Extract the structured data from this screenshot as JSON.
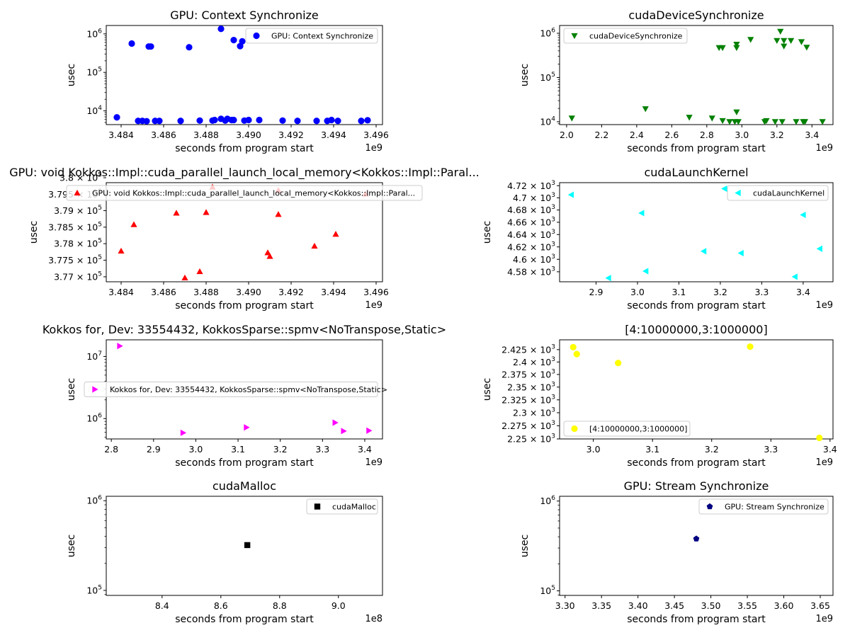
{
  "chart_data": [
    {
      "id": "ctx-sync",
      "type": "scatter",
      "title": "GPU: Context Synchronize",
      "xlabel": "seconds from program start",
      "ylabel": "usec",
      "x_offset_label": "1e9",
      "yscale": "log",
      "xlim": [
        3.4833,
        3.4963
      ],
      "ylim": [
        4400,
        1650000
      ],
      "xticks": [
        3.484,
        3.486,
        3.488,
        3.49,
        3.492,
        3.494,
        3.496
      ],
      "xtick_labels": [
        "3.484",
        "3.486",
        "3.488",
        "3.490",
        "3.492",
        "3.494",
        "3.496"
      ],
      "yticks": [
        10000,
        100000,
        1000000
      ],
      "ytick_labels": [
        "10^4",
        "10^5",
        "10^6"
      ],
      "marker": "circle",
      "color": "#0000ff",
      "grid": false,
      "legend": {
        "label": "GPU: Context Synchronize",
        "position": "upper right"
      },
      "points": [
        [
          3.4838,
          6800
        ],
        [
          3.4845,
          560000
        ],
        [
          3.4848,
          5500
        ],
        [
          3.485,
          5500
        ],
        [
          3.4852,
          5400
        ],
        [
          3.4853,
          470000
        ],
        [
          3.4854,
          470000
        ],
        [
          3.4856,
          5500
        ],
        [
          3.4858,
          5500
        ],
        [
          3.4868,
          5500
        ],
        [
          3.4872,
          450000
        ],
        [
          3.4877,
          5600
        ],
        [
          3.4883,
          5600
        ],
        [
          3.4884,
          5800
        ],
        [
          3.4887,
          1350000
        ],
        [
          3.4887,
          6200
        ],
        [
          3.4889,
          5600
        ],
        [
          3.489,
          6200
        ],
        [
          3.4892,
          5800
        ],
        [
          3.4893,
          5800
        ],
        [
          3.4893,
          690000
        ],
        [
          3.4896,
          480000
        ],
        [
          3.4897,
          640000
        ],
        [
          3.4898,
          5600
        ],
        [
          3.49,
          5800
        ],
        [
          3.4905,
          5800
        ],
        [
          3.4916,
          5600
        ],
        [
          3.4923,
          5500
        ],
        [
          3.4932,
          5500
        ],
        [
          3.4937,
          5500
        ],
        [
          3.4939,
          5800
        ],
        [
          3.4942,
          5500
        ],
        [
          3.4953,
          5500
        ],
        [
          3.4956,
          5700
        ]
      ]
    },
    {
      "id": "dev-sync",
      "type": "scatter",
      "title": "cudaDeviceSynchronize",
      "xlabel": "seconds from program start",
      "ylabel": "usec",
      "x_offset_label": "1e9",
      "yscale": "log",
      "xlim": [
        1.96,
        3.52
      ],
      "ylim": [
        8600,
        1500000
      ],
      "xticks": [
        2.0,
        2.2,
        2.4,
        2.6,
        2.8,
        3.0,
        3.2,
        3.4
      ],
      "xtick_labels": [
        "2.0",
        "2.2",
        "2.4",
        "2.6",
        "2.8",
        "3.0",
        "3.2",
        "3.4"
      ],
      "yticks": [
        10000,
        100000,
        1000000
      ],
      "ytick_labels": [
        "10^4",
        "10^5",
        "10^6"
      ],
      "marker": "triangle-down",
      "color": "#008000",
      "grid": false,
      "legend": {
        "label": "cudaDeviceSynchronize",
        "position": "upper left"
      },
      "points": [
        [
          2.03,
          12000
        ],
        [
          2.45,
          19500
        ],
        [
          2.7,
          12500
        ],
        [
          2.83,
          12000
        ],
        [
          2.87,
          470000
        ],
        [
          2.89,
          470000
        ],
        [
          2.89,
          10500
        ],
        [
          2.93,
          10000
        ],
        [
          2.96,
          10000
        ],
        [
          2.97,
          470000
        ],
        [
          2.97,
          560000
        ],
        [
          2.97,
          16500
        ],
        [
          2.98,
          10000
        ],
        [
          3.05,
          720000
        ],
        [
          3.13,
          10000
        ],
        [
          3.14,
          10500
        ],
        [
          3.19,
          10000
        ],
        [
          3.2,
          680000
        ],
        [
          3.22,
          1100000
        ],
        [
          3.23,
          10000
        ],
        [
          3.24,
          510000
        ],
        [
          3.24,
          680000
        ],
        [
          3.28,
          680000
        ],
        [
          3.31,
          10000
        ],
        [
          3.34,
          640000
        ],
        [
          3.35,
          10000
        ],
        [
          3.36,
          10000
        ],
        [
          3.37,
          480000
        ],
        [
          3.46,
          10000
        ]
      ]
    },
    {
      "id": "kokkos-launch",
      "type": "scatter",
      "title": "GPU: void Kokkos::Impl::cuda_parallel_launch_local_memory<Kokkos::Impl::Paral...",
      "xlabel": "seconds from program start",
      "ylabel": "usec",
      "x_offset_label": "1e9",
      "yscale": "log",
      "xlim": [
        3.4833,
        3.4963
      ],
      "ylim": [
        376850,
        379850
      ],
      "xticks": [
        3.484,
        3.486,
        3.488,
        3.49,
        3.492,
        3.494,
        3.496
      ],
      "xtick_labels": [
        "3.484",
        "3.486",
        "3.488",
        "3.490",
        "3.492",
        "3.494",
        "3.496"
      ],
      "yticks": [
        377000,
        377500,
        378000,
        378500,
        379000,
        379500,
        380000
      ],
      "ytick_labels": [
        "3.77 × 10^5",
        "3.775 × 10^5",
        "3.78 × 10^5",
        "3.785 × 10^5",
        "3.79 × 10^5",
        "3.795 × 10^5",
        "3.8 × 10^5"
      ],
      "marker": "triangle-up",
      "color": "#ff0000",
      "grid": false,
      "legend": {
        "label": "GPU: void Kokkos::Impl::cuda_parallel_launch_local_memory<Kokkos::Impl::Paral...",
        "position": "upper center"
      },
      "points": [
        [
          3.484,
          377780
        ],
        [
          3.4846,
          378580
        ],
        [
          3.4866,
          378930
        ],
        [
          3.487,
          376970
        ],
        [
          3.4877,
          377160
        ],
        [
          3.488,
          378950
        ],
        [
          3.4883,
          379720
        ],
        [
          3.4909,
          377730
        ],
        [
          3.491,
          377620
        ],
        [
          3.4914,
          378890
        ],
        [
          3.4914,
          379620
        ],
        [
          3.4931,
          377930
        ],
        [
          3.4941,
          378290
        ],
        [
          3.4955,
          379510
        ]
      ]
    },
    {
      "id": "launch-kernel",
      "type": "scatter",
      "title": "cudaLaunchKernel",
      "xlabel": "seconds from program start",
      "ylabel": "usec",
      "x_offset_label": "1e9",
      "yscale": "log",
      "xlim": [
        2.812,
        3.472
      ],
      "ylim": [
        4564,
        4725
      ],
      "xticks": [
        2.9,
        3.0,
        3.1,
        3.2,
        3.3,
        3.4
      ],
      "xtick_labels": [
        "2.9",
        "3.0",
        "3.1",
        "3.2",
        "3.3",
        "3.4"
      ],
      "yticks": [
        4580,
        4600,
        4620,
        4640,
        4660,
        4680,
        4700,
        4720
      ],
      "ytick_labels": [
        "4.58 × 10^3",
        "4.6 × 10^3",
        "4.62 × 10^3",
        "4.64 × 10^3",
        "4.66 × 10^3",
        "4.68 × 10^3",
        "4.7 × 10^3",
        "4.72 × 10^3"
      ],
      "marker": "triangle-left",
      "color": "#00ffff",
      "grid": false,
      "legend": {
        "label": "cudaLaunchKernel",
        "position": "upper right"
      },
      "points": [
        [
          2.84,
          4705
        ],
        [
          2.93,
          4570
        ],
        [
          3.01,
          4675
        ],
        [
          3.02,
          4581
        ],
        [
          3.16,
          4613
        ],
        [
          3.21,
          4715
        ],
        [
          3.25,
          4610
        ],
        [
          3.38,
          4572
        ],
        [
          3.4,
          4672
        ],
        [
          3.44,
          4617
        ]
      ]
    },
    {
      "id": "kokkos-spmv",
      "type": "scatter",
      "title": "Kokkos for, Dev: 33554432, KokkosSparse::spmv<NoTranspose,Static>",
      "xlabel": "seconds from program start",
      "ylabel": "usec",
      "x_offset_label": "1e9",
      "yscale": "log",
      "xlim": [
        2.788,
        3.442
      ],
      "ylim": [
        470000,
        18500000
      ],
      "xticks": [
        2.8,
        2.9,
        3.0,
        3.1,
        3.2,
        3.3,
        3.4
      ],
      "xtick_labels": [
        "2.8",
        "2.9",
        "3.0",
        "3.1",
        "3.2",
        "3.3",
        "3.4"
      ],
      "yticks": [
        1000000,
        10000000
      ],
      "ytick_labels": [
        "10^6",
        "10^7"
      ],
      "marker": "triangle-right",
      "color": "#ff00ff",
      "grid": false,
      "legend": {
        "label": "Kokkos for, Dev: 33554432, KokkosSparse::spmv<NoTranspose,Static>",
        "position": "center right"
      },
      "points": [
        [
          2.82,
          14700000
        ],
        [
          2.97,
          590000
        ],
        [
          3.12,
          720000
        ],
        [
          3.33,
          860000
        ],
        [
          3.35,
          630000
        ],
        [
          3.41,
          640000
        ]
      ]
    },
    {
      "id": "range",
      "type": "scatter",
      "title": "[4:10000000,3:1000000]",
      "xlabel": "seconds from program start",
      "ylabel": "usec",
      "x_offset_label": "1e9",
      "yscale": "log",
      "xlim": [
        2.943,
        3.405
      ],
      "ylim": [
        2250,
        2445
      ],
      "xticks": [
        3.0,
        3.1,
        3.2,
        3.3,
        3.4
      ],
      "xtick_labels": [
        "3.0",
        "3.1",
        "3.2",
        "3.3",
        "3.4"
      ],
      "yticks": [
        2250,
        2275,
        2300,
        2325,
        2350,
        2375,
        2400,
        2425
      ],
      "ytick_labels": [
        "2.25 × 10^3",
        "2.275 × 10^3",
        "2.3 × 10^3",
        "2.325 × 10^3",
        "2.35 × 10^3",
        "2.375 × 10^3",
        "2.4 × 10^3",
        "2.425 × 10^3"
      ],
      "marker": "circle",
      "color": "#ffff00",
      "grid": false,
      "legend": {
        "label": "[4:10000000,3:1000000]",
        "position": "lower left"
      },
      "points": [
        [
          2.966,
          2430
        ],
        [
          2.972,
          2416
        ],
        [
          3.042,
          2398
        ],
        [
          3.265,
          2431
        ],
        [
          3.382,
          2252
        ]
      ]
    },
    {
      "id": "malloc",
      "type": "scatter",
      "title": "cudaMalloc",
      "xlabel": "seconds from program start",
      "ylabel": "usec",
      "x_offset_label": "1e8",
      "yscale": "log",
      "xlim": [
        8.21,
        9.15
      ],
      "ylim": [
        88000,
        1120000
      ],
      "xticks": [
        8.4,
        8.6,
        8.8,
        9.0
      ],
      "xtick_labels": [
        "8.4",
        "8.6",
        "8.8",
        "9.0"
      ],
      "yticks": [
        100000,
        1000000
      ],
      "ytick_labels": [
        "10^5",
        "10^6"
      ],
      "marker": "square",
      "color": "#000000",
      "grid": false,
      "legend": {
        "label": "cudaMalloc",
        "position": "upper right"
      },
      "points": [
        [
          8.69,
          320000
        ]
      ]
    },
    {
      "id": "stream-sync",
      "type": "scatter",
      "title": "GPU: Stream Synchronize",
      "xlabel": "seconds from program start",
      "ylabel": "usec",
      "x_offset_label": "1e9",
      "yscale": "log",
      "xlim": [
        3.2925,
        3.6675
      ],
      "ylim": [
        89000,
        1130000
      ],
      "xticks": [
        3.3,
        3.35,
        3.4,
        3.45,
        3.5,
        3.55,
        3.6,
        3.65
      ],
      "xtick_labels": [
        "3.30",
        "3.35",
        "3.40",
        "3.45",
        "3.50",
        "3.55",
        "3.60",
        "3.65"
      ],
      "yticks": [
        100000,
        1000000
      ],
      "ytick_labels": [
        "10^5",
        "10^6"
      ],
      "marker": "pentagon",
      "color": "#000080",
      "grid": false,
      "legend": {
        "label": "GPU: Stream Synchronize",
        "position": "upper right"
      },
      "points": [
        [
          3.48,
          380000
        ]
      ]
    }
  ]
}
